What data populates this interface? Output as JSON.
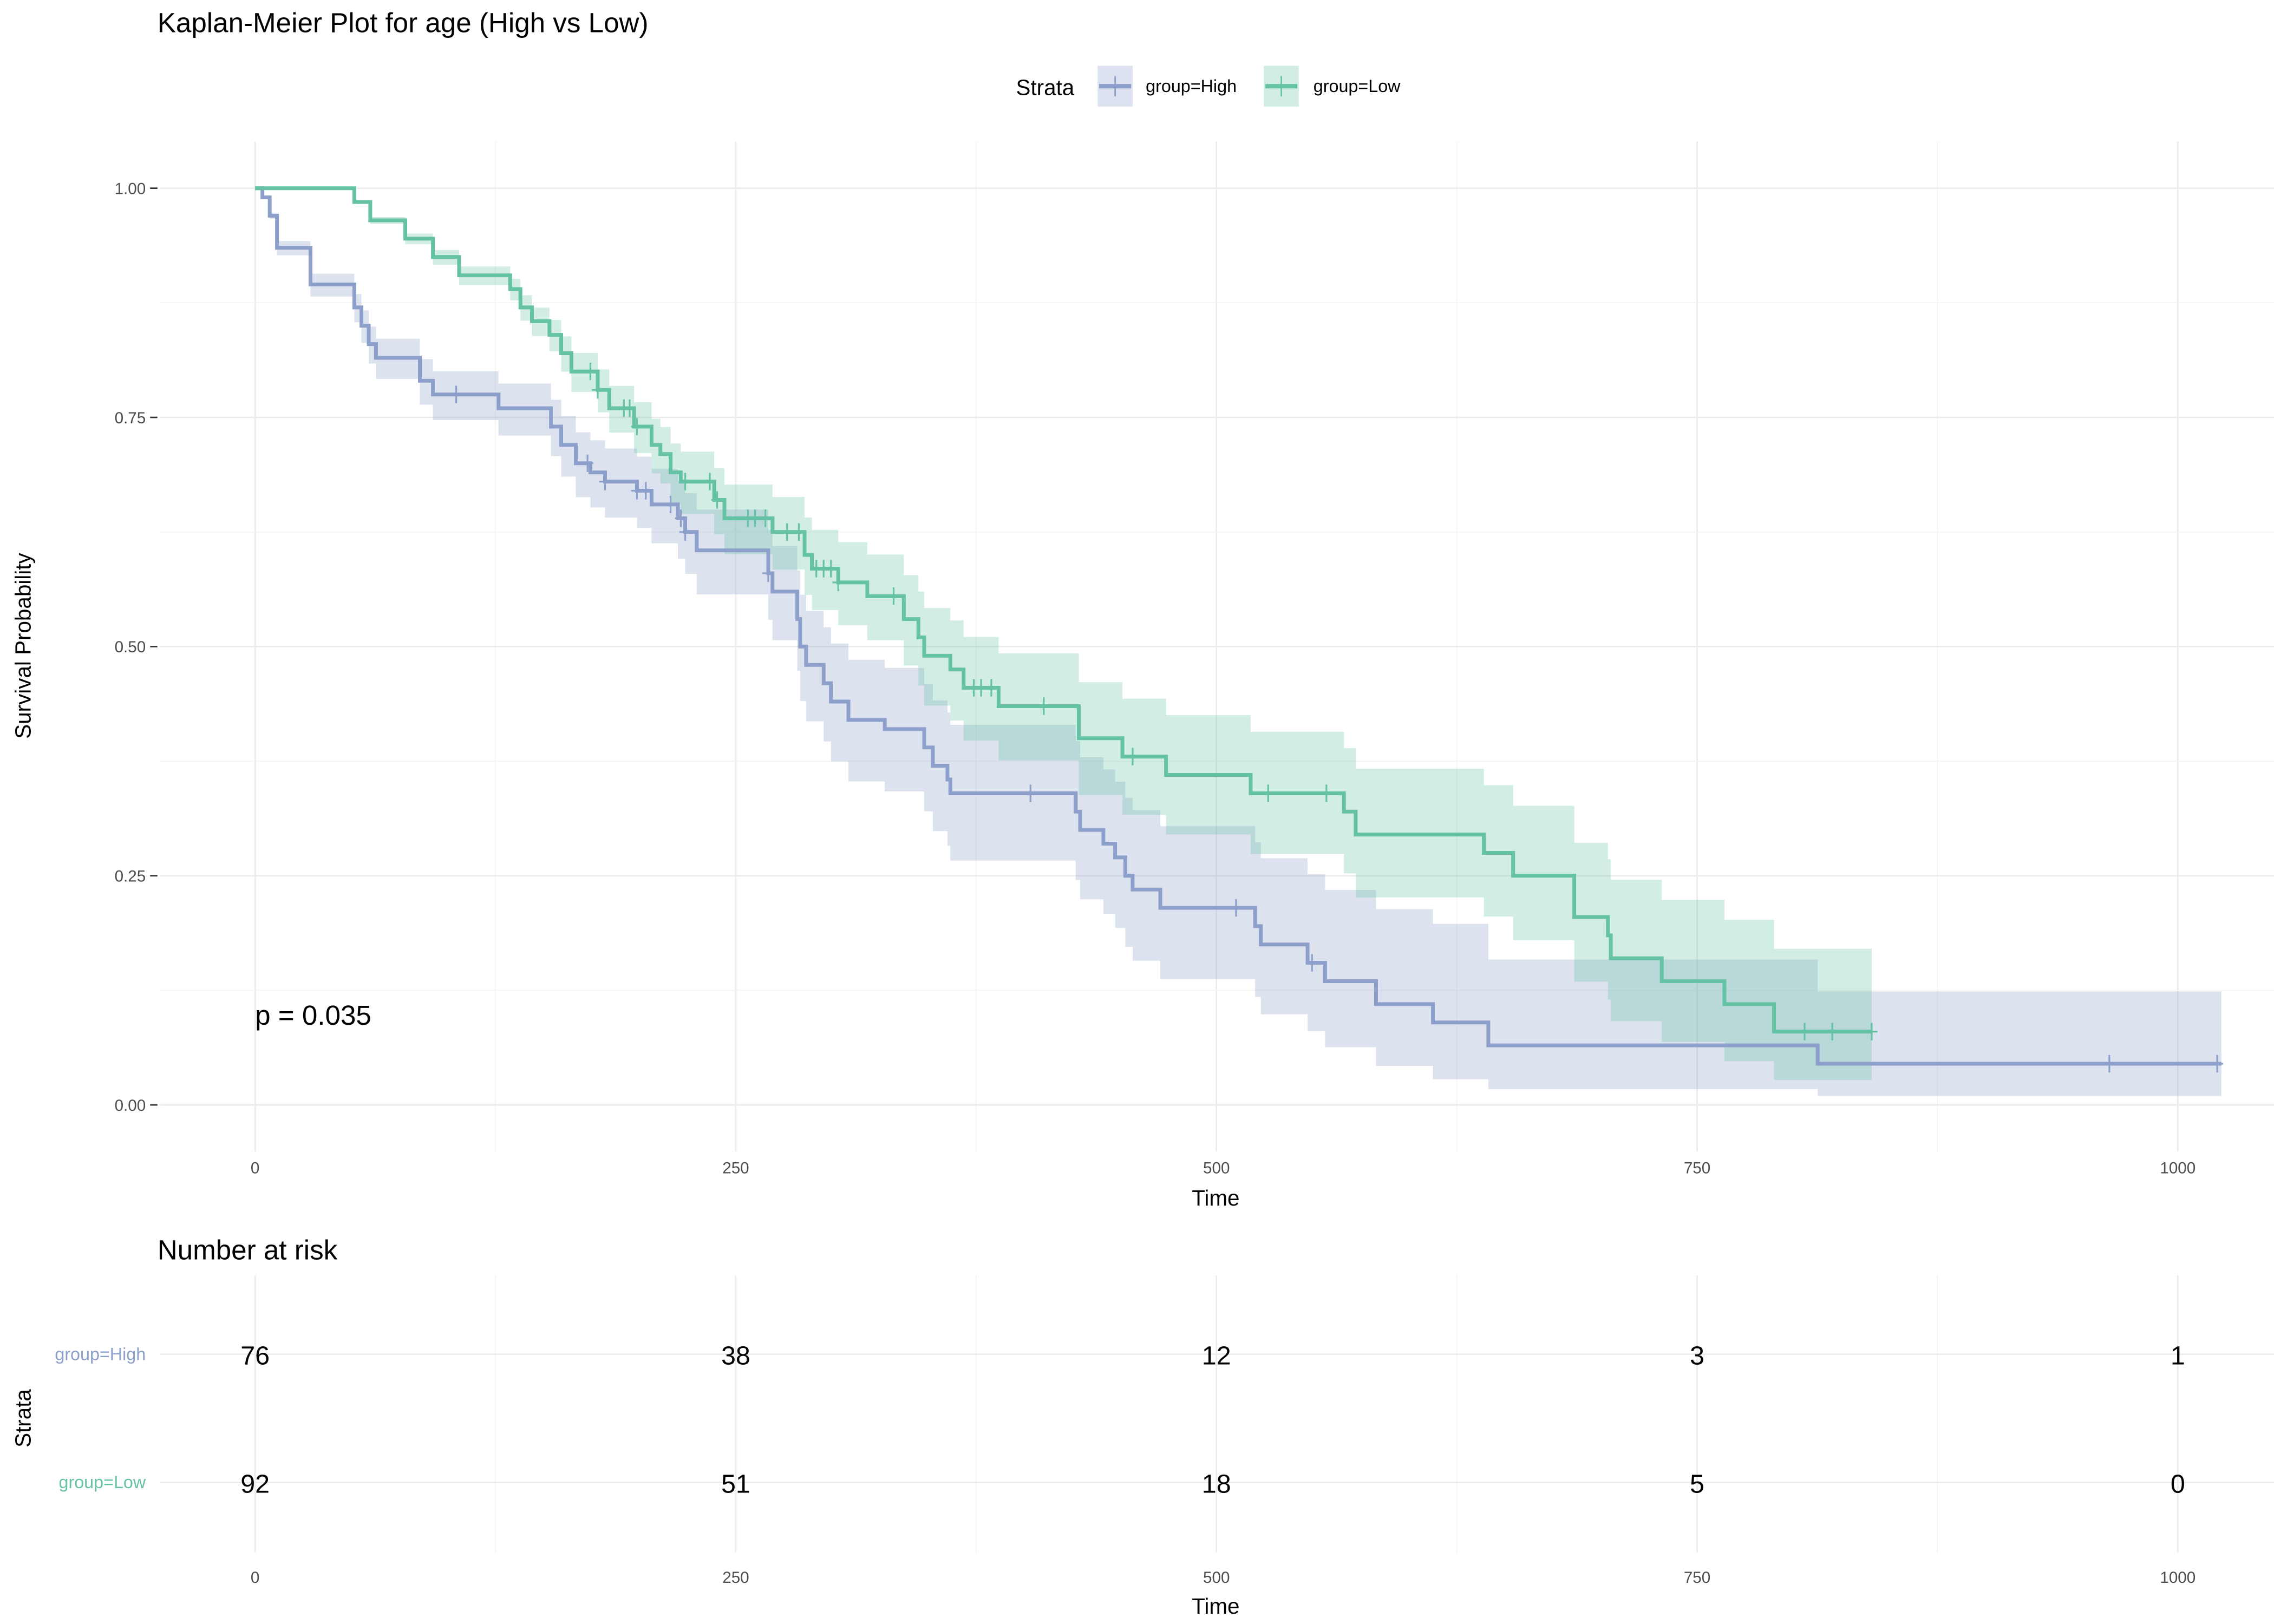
{
  "chart_data": {
    "type": "line",
    "title": "Kaplan-Meier Plot for age (High vs Low)",
    "xlabel": "Time",
    "ylabel": "Survival Probability",
    "xlim": [
      0,
      1050
    ],
    "ylim": [
      0,
      1
    ],
    "xticks": [
      "0",
      "250",
      "500",
      "750",
      "1000"
    ],
    "xtick_values": [
      0,
      250,
      500,
      750,
      1000
    ],
    "yticks": [
      "0.00",
      "0.25",
      "0.50",
      "0.75",
      "1.00"
    ],
    "ytick_values": [
      0,
      0.25,
      0.5,
      0.75,
      1
    ],
    "grid": true,
    "legend": {
      "title": "Strata",
      "position": "top"
    },
    "annotation": "p = 0.035",
    "series": [
      {
        "name": "group=High",
        "color": "#8DA0CB",
        "fill": "#DCE2EF",
        "steps": [
          [
            0,
            1.0
          ],
          [
            3.8,
            0.99
          ],
          [
            7.6,
            0.97
          ],
          [
            11.4,
            0.935
          ],
          [
            28.8,
            0.895
          ],
          [
            51.6,
            0.87
          ],
          [
            55.3,
            0.85
          ],
          [
            59.1,
            0.83
          ],
          [
            62.9,
            0.815
          ],
          [
            85.7,
            0.79
          ],
          [
            92.5,
            0.775
          ],
          [
            126.6,
            0.76
          ],
          [
            153.9,
            0.74
          ],
          [
            159.2,
            0.72
          ],
          [
            166.8,
            0.7
          ],
          [
            174.4,
            0.69
          ],
          [
            182,
            0.68
          ],
          [
            198.6,
            0.67
          ],
          [
            206.2,
            0.655
          ],
          [
            219.9,
            0.64
          ],
          [
            223.7,
            0.625
          ],
          [
            229.7,
            0.605
          ],
          [
            266.9,
            0.58
          ],
          [
            269.1,
            0.56
          ],
          [
            282,
            0.53
          ],
          [
            283.5,
            0.5
          ],
          [
            286.6,
            0.48
          ],
          [
            295.7,
            0.46
          ],
          [
            299.5,
            0.44
          ],
          [
            308.6,
            0.42
          ],
          [
            327.5,
            0.41
          ],
          [
            348,
            0.39
          ],
          [
            352.5,
            0.37
          ],
          [
            360.1,
            0.355
          ],
          [
            361.6,
            0.34
          ],
          [
            426.8,
            0.32
          ],
          [
            429.1,
            0.3
          ],
          [
            441.2,
            0.285
          ],
          [
            447.3,
            0.27
          ],
          [
            452.6,
            0.25
          ],
          [
            456.4,
            0.235
          ],
          [
            470.8,
            0.215
          ],
          [
            520.1,
            0.195
          ],
          [
            523.1,
            0.175
          ],
          [
            547.4,
            0.155
          ],
          [
            556.5,
            0.135
          ],
          [
            583,
            0.11
          ],
          [
            612.6,
            0.09
          ],
          [
            641.4,
            0.065
          ],
          [
            812.7,
            0.045
          ]
        ],
        "end_time": 1022.7,
        "censored": [
          104.6,
          172.9,
          182,
          198.6,
          203.2,
          216.1,
          221.4,
          223.7,
          266.9,
          403.3,
          510.2,
          549.7,
          964.4,
          1020.5
        ],
        "ci_spread": 1.0
      },
      {
        "name": "group=Low",
        "color": "#66C2A5",
        "fill": "#D2EDE4",
        "steps": [
          [
            0,
            1.0
          ],
          [
            51.6,
            0.985
          ],
          [
            59.9,
            0.965
          ],
          [
            78.1,
            0.945
          ],
          [
            92.5,
            0.925
          ],
          [
            106.1,
            0.905
          ],
          [
            132.7,
            0.89
          ],
          [
            138,
            0.87
          ],
          [
            144,
            0.855
          ],
          [
            153.1,
            0.84
          ],
          [
            159.2,
            0.82
          ],
          [
            164.5,
            0.8
          ],
          [
            178.2,
            0.78
          ],
          [
            184.2,
            0.76
          ],
          [
            197.1,
            0.74
          ],
          [
            206.2,
            0.72
          ],
          [
            210.8,
            0.71
          ],
          [
            216.1,
            0.69
          ],
          [
            221.4,
            0.68
          ],
          [
            238.8,
            0.66
          ],
          [
            244.1,
            0.64
          ],
          [
            269.1,
            0.625
          ],
          [
            285.8,
            0.6
          ],
          [
            289.6,
            0.585
          ],
          [
            303.3,
            0.57
          ],
          [
            318.4,
            0.555
          ],
          [
            337.4,
            0.53
          ],
          [
            345,
            0.51
          ],
          [
            348,
            0.49
          ],
          [
            361.6,
            0.475
          ],
          [
            368.5,
            0.455
          ],
          [
            386.7,
            0.435
          ],
          [
            428.4,
            0.4
          ],
          [
            451.1,
            0.38
          ],
          [
            473.8,
            0.36
          ],
          [
            517.8,
            0.34
          ],
          [
            566.3,
            0.32
          ],
          [
            572.4,
            0.295
          ],
          [
            639.1,
            0.275
          ],
          [
            654.3,
            0.25
          ],
          [
            686.1,
            0.205
          ],
          [
            703.6,
            0.185
          ],
          [
            705.1,
            0.16
          ],
          [
            731.6,
            0.135
          ],
          [
            764.2,
            0.11
          ],
          [
            790,
            0.08
          ]
        ],
        "end_time": 840.8,
        "censored": [
          174.4,
          178.2,
          191.8,
          194.8,
          198.6,
          223.7,
          236.5,
          240.3,
          256.3,
          260,
          265.4,
          276.7,
          282.8,
          291.9,
          295.7,
          299.5,
          303.3,
          332.1,
          373.8,
          377.6,
          382.9,
          410.2,
          456.4,
          526.9,
          557.2,
          805.9,
          820.3,
          840.8
        ],
        "ci_spread": 0.9
      }
    ],
    "risk_table": {
      "title": "Number at risk",
      "ylabel": "Strata",
      "xlabel": "Time",
      "times": [
        0,
        250,
        500,
        750,
        1000
      ],
      "time_labels": [
        "0",
        "250",
        "500",
        "750",
        "1000"
      ],
      "rows": [
        {
          "label": "group=High",
          "color": "#8DA0CB",
          "counts": [
            "76",
            "38",
            "12",
            "3",
            "1"
          ]
        },
        {
          "label": "group=Low",
          "color": "#66C2A5",
          "counts": [
            "92",
            "51",
            "18",
            "5",
            "0"
          ]
        }
      ]
    }
  }
}
